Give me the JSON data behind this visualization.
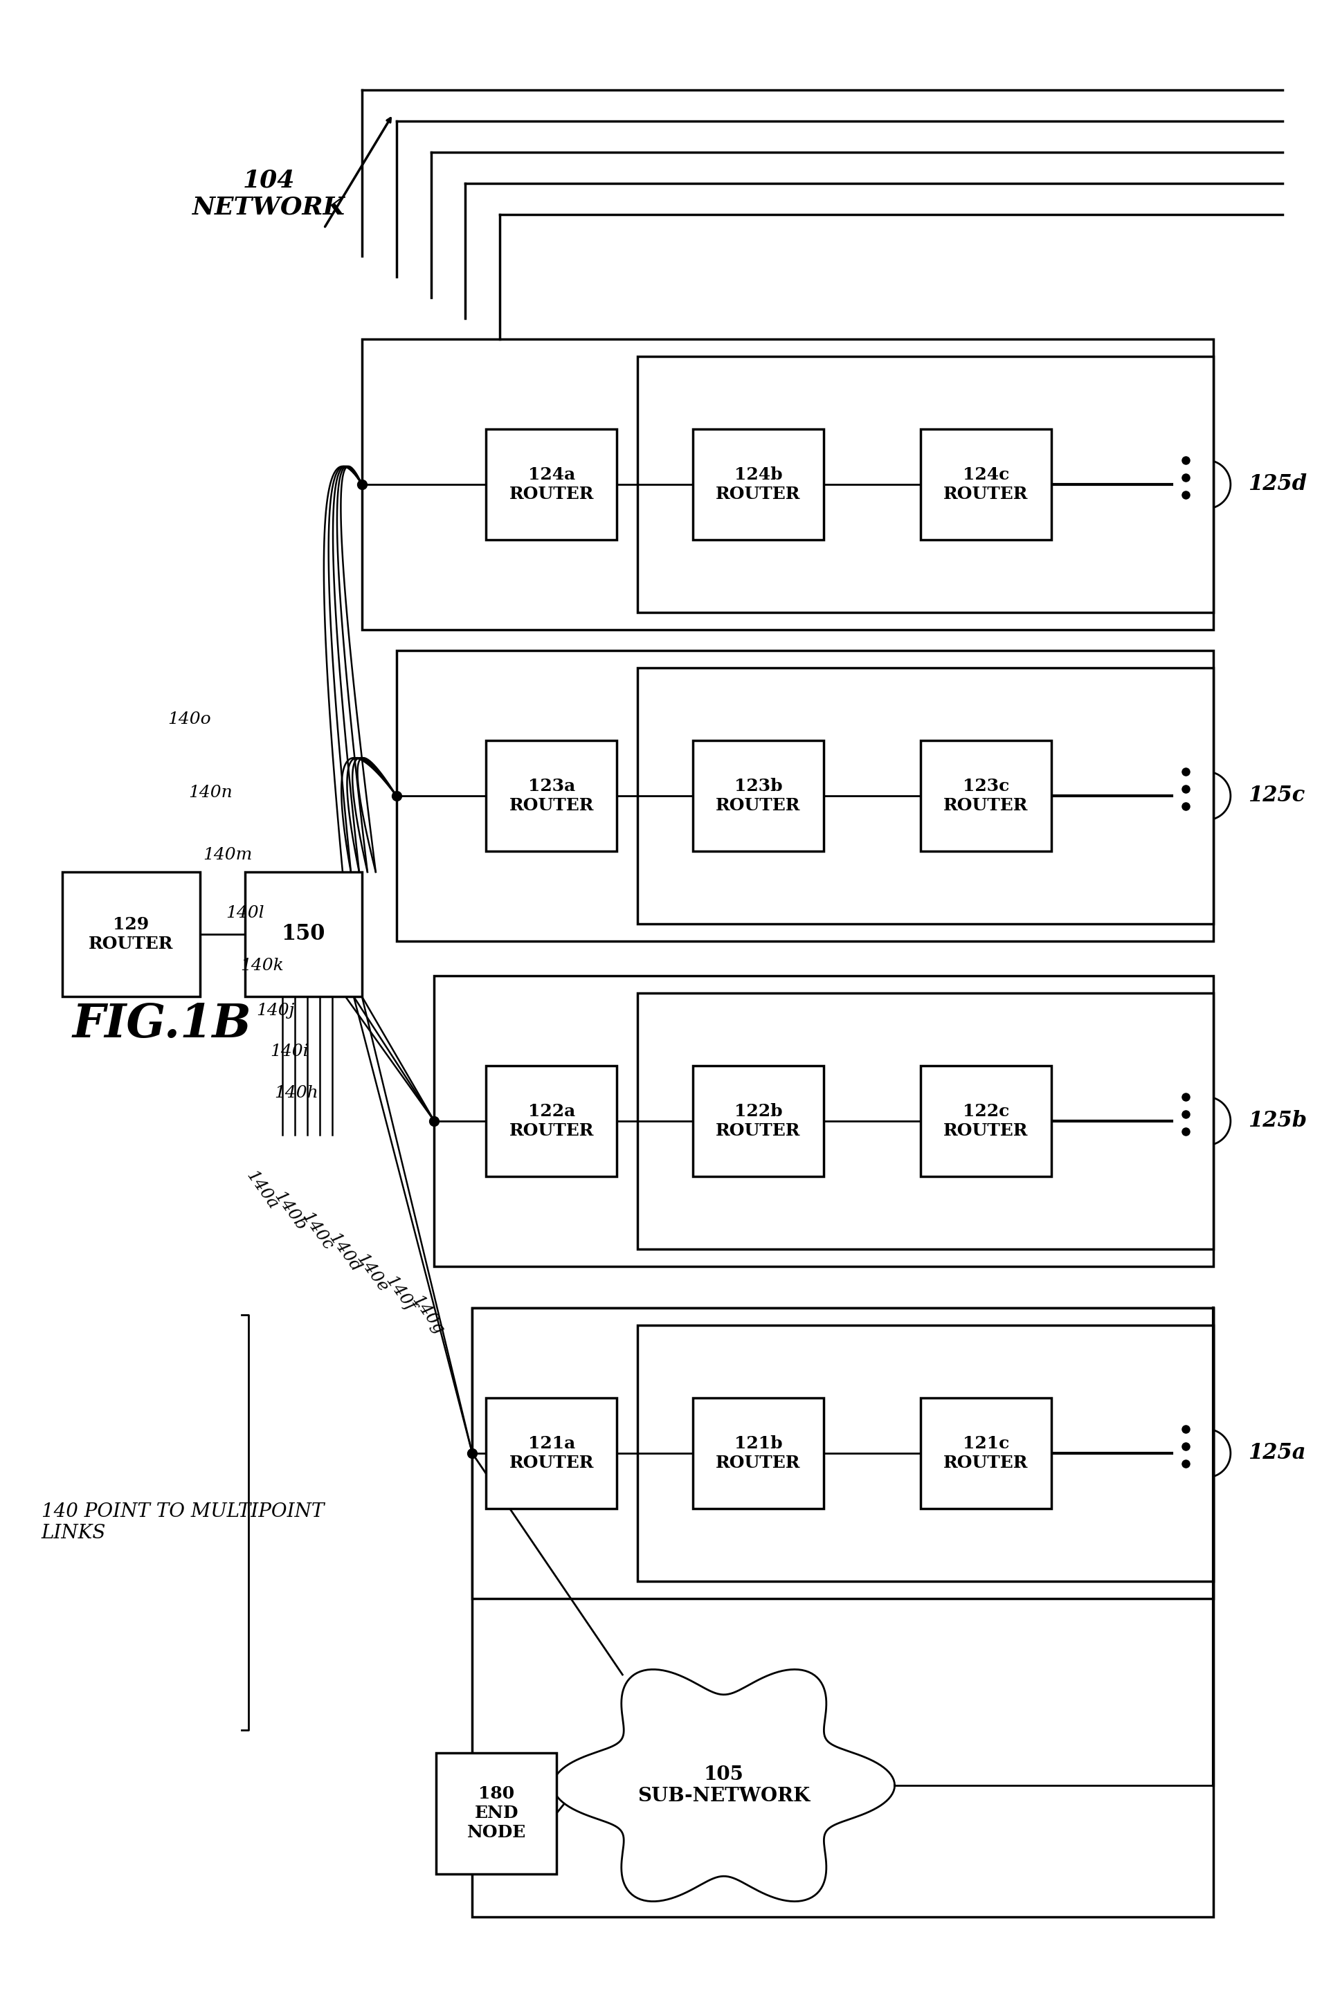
{
  "bg": "#ffffff",
  "fig_label": "FIG.1B",
  "network_label": "104\nNETWORK",
  "router_groups": [
    {
      "prefix": "121",
      "bus_label": "125a"
    },
    {
      "prefix": "122",
      "bus_label": "125b"
    },
    {
      "prefix": "123",
      "bus_label": "125c"
    },
    {
      "prefix": "124",
      "bus_label": "125d"
    }
  ],
  "link_labels_lower": [
    "140a",
    "140b",
    "140c",
    "140d",
    "140e",
    "140f",
    "140g"
  ],
  "link_labels_upper": [
    "140h",
    "140i",
    "140j",
    "140k",
    "140l",
    "140m",
    "140n",
    "140o"
  ],
  "ptmp_label": "140 POINT TO MULTIPOINT\nLINKS"
}
